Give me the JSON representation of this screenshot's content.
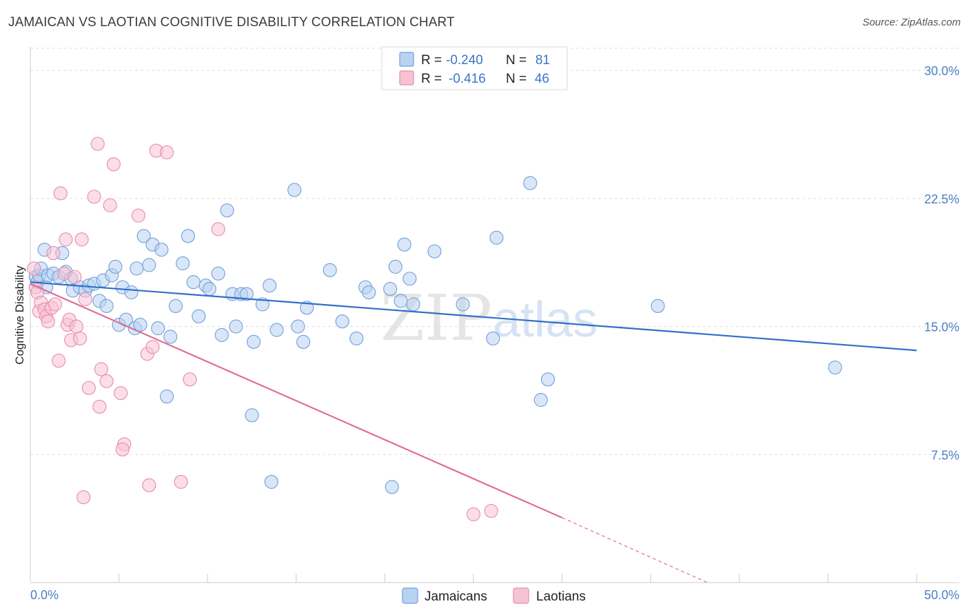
{
  "title": "JAMAICAN VS LAOTIAN COGNITIVE DISABILITY CORRELATION CHART",
  "source": "Source: ZipAtlas.com",
  "watermark": {
    "zip": "ZIP",
    "atlas": "atlas"
  },
  "colors": {
    "jamaican_fill": "#b8d2f3",
    "jamaican_stroke": "#6f9ed8",
    "jamaican_line": "#2f6fca",
    "laotian_fill": "#f7c3d4",
    "laotian_stroke": "#e88aab",
    "laotian_line": "#e06c97",
    "axis_label": "#4a7fc8",
    "grid": "#dddddd"
  },
  "legend": {
    "rows": [
      {
        "r_label": "R =",
        "r_value": "-0.240",
        "n_label": "N =",
        "n_value": "81"
      },
      {
        "r_label": "R =",
        "r_value": "-0.416",
        "n_label": "N =",
        "n_value": "46"
      }
    ]
  },
  "bottom_legend": [
    "Jamaicans",
    "Laotians"
  ],
  "chart_data": {
    "type": "scatter",
    "title": "JAMAICAN VS LAOTIAN COGNITIVE DISABILITY CORRELATION CHART",
    "xlabel": "",
    "ylabel": "Cognitive Disability",
    "xlim": [
      0,
      50
    ],
    "ylim": [
      0,
      31.5
    ],
    "x_tick_labels": [
      "0.0%",
      "50.0%"
    ],
    "y_ticks": [
      7.5,
      15.0,
      22.5,
      30.0
    ],
    "y_tick_labels": [
      "7.5%",
      "15.0%",
      "22.5%",
      "30.0%"
    ],
    "grid": true,
    "legend_position": "top-center",
    "series": [
      {
        "name": "Jamaicans",
        "r": -0.24,
        "n": 81,
        "trend": {
          "x0": 0,
          "y0": 17.6,
          "x1": 50,
          "y1": 13.6
        },
        "points": [
          [
            0.3,
            17.9
          ],
          [
            0.4,
            17.6
          ],
          [
            0.5,
            18.0
          ],
          [
            0.6,
            18.4
          ],
          [
            0.8,
            19.5
          ],
          [
            0.9,
            17.3
          ],
          [
            1.0,
            18.0
          ],
          [
            1.3,
            18.1
          ],
          [
            1.6,
            17.9
          ],
          [
            1.8,
            19.3
          ],
          [
            2.0,
            18.2
          ],
          [
            2.3,
            17.8
          ],
          [
            2.4,
            17.1
          ],
          [
            2.8,
            17.3
          ],
          [
            3.1,
            17.1
          ],
          [
            3.3,
            17.4
          ],
          [
            3.6,
            17.5
          ],
          [
            3.9,
            16.5
          ],
          [
            4.1,
            17.7
          ],
          [
            4.3,
            16.2
          ],
          [
            4.6,
            18.0
          ],
          [
            4.8,
            18.5
          ],
          [
            5.0,
            15.1
          ],
          [
            5.2,
            17.3
          ],
          [
            5.4,
            15.4
          ],
          [
            5.7,
            17.0
          ],
          [
            5.9,
            14.9
          ],
          [
            6.0,
            18.4
          ],
          [
            6.2,
            15.1
          ],
          [
            6.4,
            20.3
          ],
          [
            6.7,
            18.6
          ],
          [
            6.9,
            19.8
          ],
          [
            7.2,
            14.9
          ],
          [
            7.4,
            19.5
          ],
          [
            7.7,
            10.9
          ],
          [
            7.9,
            14.4
          ],
          [
            8.2,
            16.2
          ],
          [
            8.6,
            18.7
          ],
          [
            8.9,
            20.3
          ],
          [
            9.2,
            17.6
          ],
          [
            9.5,
            15.6
          ],
          [
            9.9,
            17.4
          ],
          [
            10.1,
            17.2
          ],
          [
            10.6,
            18.1
          ],
          [
            10.8,
            14.5
          ],
          [
            11.1,
            21.8
          ],
          [
            11.4,
            16.9
          ],
          [
            11.6,
            15.0
          ],
          [
            11.9,
            16.9
          ],
          [
            12.2,
            16.9
          ],
          [
            12.5,
            9.8
          ],
          [
            12.6,
            14.1
          ],
          [
            13.1,
            16.3
          ],
          [
            13.5,
            17.4
          ],
          [
            13.6,
            5.9
          ],
          [
            13.9,
            14.8
          ],
          [
            14.9,
            23.0
          ],
          [
            15.1,
            15.0
          ],
          [
            15.4,
            14.1
          ],
          [
            15.6,
            16.1
          ],
          [
            16.9,
            18.3
          ],
          [
            17.6,
            15.3
          ],
          [
            18.4,
            14.3
          ],
          [
            18.9,
            17.3
          ],
          [
            19.1,
            17.0
          ],
          [
            20.3,
            17.2
          ],
          [
            20.4,
            5.6
          ],
          [
            20.6,
            18.5
          ],
          [
            20.9,
            16.5
          ],
          [
            21.1,
            19.8
          ],
          [
            21.4,
            17.8
          ],
          [
            21.6,
            16.3
          ],
          [
            22.8,
            19.4
          ],
          [
            24.4,
            16.3
          ],
          [
            26.1,
            14.3
          ],
          [
            26.3,
            20.2
          ],
          [
            28.2,
            23.4
          ],
          [
            28.8,
            10.7
          ],
          [
            29.2,
            11.9
          ],
          [
            35.4,
            16.2
          ],
          [
            45.4,
            12.6
          ]
        ]
      },
      {
        "name": "Laotians",
        "r": -0.416,
        "n": 46,
        "trend": {
          "x0": 0,
          "y0": 17.5,
          "x1": 30,
          "y1": 3.8
        },
        "trend_dashed": {
          "x0": 30,
          "y0": 3.8,
          "x1": 38.2,
          "y1": 0
        },
        "points": [
          [
            0.2,
            18.4
          ],
          [
            0.3,
            17.3
          ],
          [
            0.4,
            17.0
          ],
          [
            0.5,
            15.9
          ],
          [
            0.6,
            16.4
          ],
          [
            0.8,
            16.0
          ],
          [
            0.9,
            15.6
          ],
          [
            1.0,
            15.3
          ],
          [
            1.2,
            16.1
          ],
          [
            1.3,
            19.3
          ],
          [
            1.4,
            16.3
          ],
          [
            1.6,
            13.0
          ],
          [
            1.7,
            22.8
          ],
          [
            1.9,
            18.1
          ],
          [
            2.0,
            20.1
          ],
          [
            2.1,
            15.1
          ],
          [
            2.2,
            15.4
          ],
          [
            2.3,
            14.2
          ],
          [
            2.5,
            17.9
          ],
          [
            2.6,
            15.0
          ],
          [
            2.8,
            14.3
          ],
          [
            2.9,
            20.1
          ],
          [
            3.0,
            5.0
          ],
          [
            3.1,
            16.6
          ],
          [
            3.3,
            11.4
          ],
          [
            3.6,
            22.6
          ],
          [
            3.8,
            25.7
          ],
          [
            3.9,
            10.3
          ],
          [
            4.0,
            12.5
          ],
          [
            4.3,
            11.8
          ],
          [
            4.5,
            22.1
          ],
          [
            4.7,
            24.5
          ],
          [
            5.1,
            11.1
          ],
          [
            5.3,
            8.1
          ],
          [
            5.2,
            7.8
          ],
          [
            6.1,
            21.5
          ],
          [
            6.6,
            13.4
          ],
          [
            6.7,
            5.7
          ],
          [
            6.9,
            13.8
          ],
          [
            7.1,
            25.3
          ],
          [
            7.7,
            25.2
          ],
          [
            8.5,
            5.9
          ],
          [
            9.0,
            11.9
          ],
          [
            10.6,
            20.7
          ],
          [
            25.0,
            4.0
          ],
          [
            26.0,
            4.2
          ]
        ]
      }
    ]
  }
}
